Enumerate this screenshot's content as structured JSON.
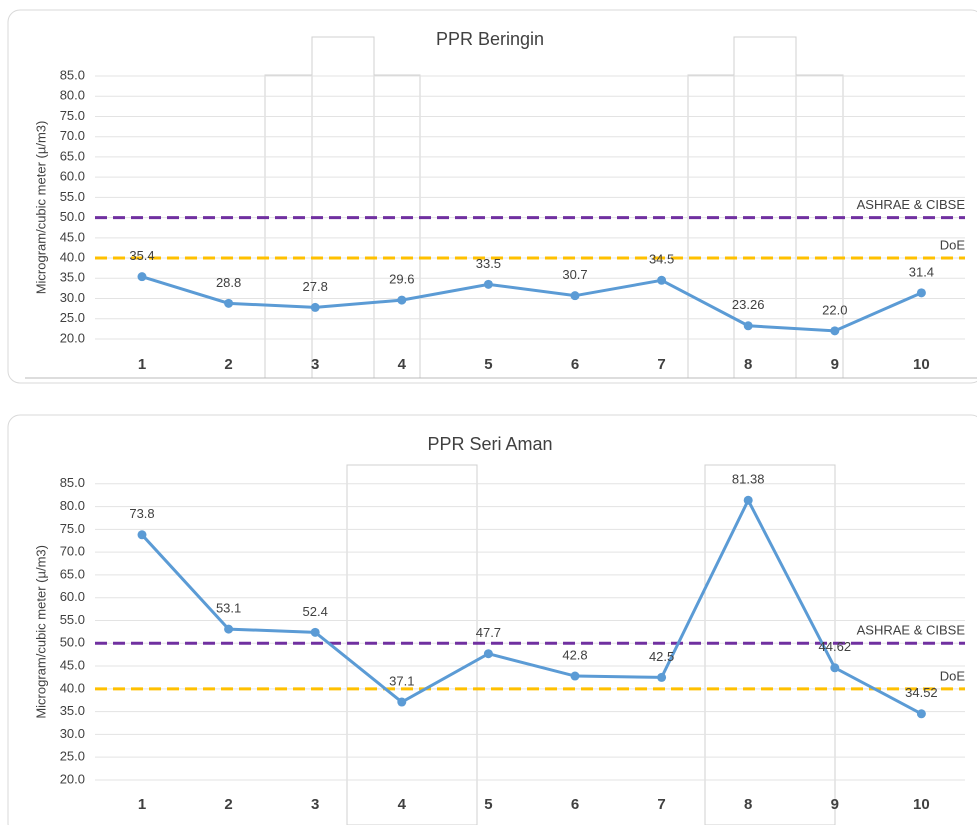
{
  "chart_data": [
    {
      "type": "line",
      "title": "PPR Beringin",
      "y_label": "Microgram/cubic meter (µ/m3)",
      "categories": [
        "1",
        "2",
        "3",
        "4",
        "5",
        "6",
        "7",
        "8",
        "9",
        "10"
      ],
      "series": [
        {
          "color": "#5b9bd5",
          "values": [
            35.4,
            28.8,
            27.8,
            29.6,
            33.5,
            30.7,
            34.5,
            23.26,
            22.0,
            31.4
          ],
          "value_labels": [
            "35.4",
            "28.8",
            "27.8",
            "29.6",
            "33.5",
            "30.7",
            "34.5",
            "23.26",
            "22.0",
            "31.4"
          ]
        }
      ],
      "reference_lines": [
        {
          "label": "ASHRAE & CIBSE",
          "value": 50,
          "color": "#7030a0"
        },
        {
          "label": "DoE",
          "value": 40,
          "color": "#ffc000"
        }
      ],
      "ylim": [
        10,
        90
      ],
      "yticks": [
        {
          "value": 20,
          "label": "20.0"
        },
        {
          "value": 25,
          "label": "25.0"
        },
        {
          "value": 30,
          "label": "30.0"
        },
        {
          "value": 35,
          "label": "35.0"
        },
        {
          "value": 40,
          "label": "40.0"
        },
        {
          "value": 45,
          "label": "45.0"
        },
        {
          "value": 50,
          "label": "50.0"
        },
        {
          "value": 55,
          "label": "55.0"
        },
        {
          "value": 60,
          "label": "60.0"
        },
        {
          "value": 65,
          "label": "65.0"
        },
        {
          "value": 70,
          "label": "70.0"
        },
        {
          "value": 75,
          "label": "75.0"
        },
        {
          "value": 80,
          "label": "80.0"
        },
        {
          "value": 85,
          "label": "85.0"
        }
      ],
      "grid": true
    },
    {
      "type": "line",
      "title": "PPR Seri Aman",
      "y_label": "Microgram/cubic meter (µ/m3)",
      "categories": [
        "1",
        "2",
        "3",
        "4",
        "5",
        "6",
        "7",
        "8",
        "9",
        "10"
      ],
      "series": [
        {
          "color": "#5b9bd5",
          "values": [
            73.8,
            53.1,
            52.4,
            37.1,
            47.7,
            42.8,
            42.5,
            81.38,
            44.62,
            34.52
          ],
          "value_labels": [
            "73.8",
            "53.1",
            "52.4",
            "37.1",
            "47.7",
            "42.8",
            "42.5",
            "81.38",
            "44.62",
            "34.52"
          ]
        }
      ],
      "reference_lines": [
        {
          "label": "ASHRAE & CIBSE",
          "value": 50,
          "color": "#7030a0"
        },
        {
          "label": "DoE",
          "value": 40,
          "color": "#ffc000"
        }
      ],
      "ylim": [
        10,
        90
      ],
      "yticks": [
        {
          "value": 20,
          "label": "20.0"
        },
        {
          "value": 25,
          "label": "25.0"
        },
        {
          "value": 30,
          "label": "30.0"
        },
        {
          "value": 35,
          "label": "35.0"
        },
        {
          "value": 40,
          "label": "40.0"
        },
        {
          "value": 45,
          "label": "45.0"
        },
        {
          "value": 50,
          "label": "50.0"
        },
        {
          "value": 55,
          "label": "55.0"
        },
        {
          "value": 60,
          "label": "60.0"
        },
        {
          "value": 65,
          "label": "65.0"
        },
        {
          "value": 70,
          "label": "70.0"
        },
        {
          "value": 75,
          "label": "75.0"
        },
        {
          "value": 80,
          "label": "80.0"
        },
        {
          "value": 85,
          "label": "85.0"
        }
      ],
      "grid": true
    }
  ]
}
